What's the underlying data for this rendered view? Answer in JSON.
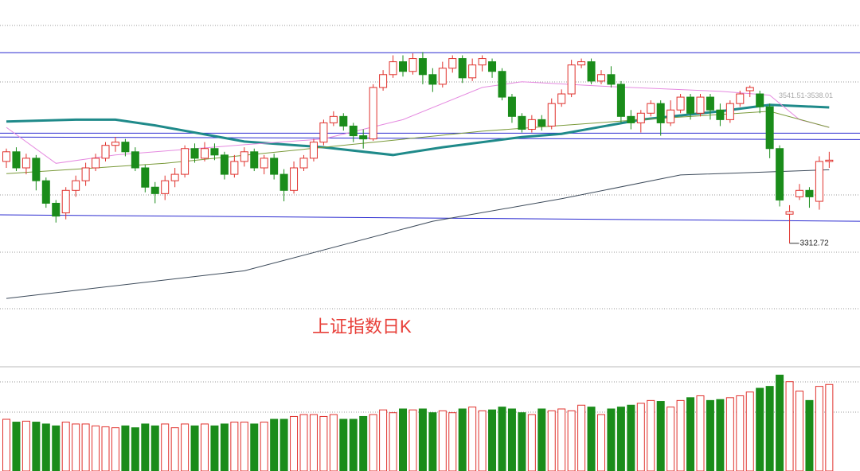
{
  "chart_data": {
    "type": "candlestick",
    "title": "上证指数日K",
    "ylim": [
      3122,
      3691
    ],
    "open": [
      3440,
      3455,
      3430,
      3445,
      3410,
      3375,
      3360,
      3395,
      3410,
      3430,
      3445,
      3465,
      3470,
      3455,
      3430,
      3400,
      3390,
      3410,
      3420,
      3460,
      3445,
      3460,
      3450,
      3420,
      3440,
      3455,
      3430,
      3445,
      3420,
      3395,
      3430,
      3445,
      3470,
      3500,
      3510,
      3495,
      3480,
      3475,
      3555,
      3575,
      3595,
      3580,
      3600,
      3575,
      3560,
      3585,
      3600,
      3570,
      3590,
      3595,
      3580,
      3540,
      3510,
      3490,
      3505,
      3495,
      3530,
      3545,
      3590,
      3595,
      3565,
      3575,
      3560,
      3510,
      3500,
      3515,
      3530,
      3500,
      3520,
      3540,
      3515,
      3540,
      3520,
      3505,
      3530,
      3550,
      3545,
      3525,
      3460,
      3358,
      3385,
      3395,
      3378,
      3440
    ],
    "high": [
      3460,
      3462,
      3452,
      3450,
      3415,
      3380,
      3400,
      3418,
      3438,
      3452,
      3470,
      3478,
      3475,
      3462,
      3435,
      3408,
      3418,
      3430,
      3465,
      3468,
      3470,
      3468,
      3455,
      3450,
      3462,
      3460,
      3450,
      3452,
      3428,
      3440,
      3450,
      3475,
      3505,
      3518,
      3515,
      3500,
      3490,
      3560,
      3582,
      3605,
      3605,
      3608,
      3610,
      3585,
      3595,
      3605,
      3605,
      3600,
      3605,
      3600,
      3585,
      3545,
      3515,
      3512,
      3512,
      3538,
      3552,
      3598,
      3600,
      3600,
      3582,
      3588,
      3565,
      3520,
      3520,
      3535,
      3535,
      3535,
      3545,
      3545,
      3545,
      3545,
      3530,
      3535,
      3550,
      3558,
      3550,
      3530,
      3465,
      3372,
      3405,
      3400,
      3448,
      3455
    ],
    "low": [
      3430,
      3425,
      3420,
      3395,
      3368,
      3345,
      3350,
      3385,
      3402,
      3425,
      3440,
      3455,
      3448,
      3425,
      3392,
      3375,
      3380,
      3400,
      3415,
      3438,
      3440,
      3442,
      3412,
      3415,
      3432,
      3425,
      3420,
      3412,
      3378,
      3390,
      3425,
      3440,
      3465,
      3495,
      3488,
      3470,
      3460,
      3472,
      3550,
      3570,
      3572,
      3575,
      3560,
      3548,
      3555,
      3578,
      3562,
      3565,
      3580,
      3570,
      3535,
      3500,
      3485,
      3485,
      3488,
      3490,
      3525,
      3540,
      3585,
      3560,
      3560,
      3555,
      3500,
      3490,
      3485,
      3510,
      3480,
      3495,
      3515,
      3505,
      3510,
      3505,
      3495,
      3500,
      3525,
      3540,
      3515,
      3445,
      3370,
      3312.72,
      3380,
      3368,
      3365,
      3430
    ],
    "close": [
      3455,
      3430,
      3445,
      3410,
      3375,
      3355,
      3395,
      3410,
      3430,
      3445,
      3465,
      3470,
      3455,
      3430,
      3400,
      3390,
      3410,
      3420,
      3460,
      3445,
      3460,
      3450,
      3420,
      3440,
      3455,
      3430,
      3445,
      3420,
      3395,
      3430,
      3445,
      3470,
      3500,
      3510,
      3495,
      3480,
      3475,
      3555,
      3575,
      3595,
      3580,
      3600,
      3575,
      3560,
      3585,
      3600,
      3570,
      3590,
      3600,
      3580,
      3540,
      3510,
      3490,
      3505,
      3495,
      3530,
      3545,
      3590,
      3595,
      3565,
      3575,
      3560,
      3510,
      3500,
      3515,
      3530,
      3500,
      3520,
      3540,
      3515,
      3540,
      3520,
      3505,
      3530,
      3545,
      3555,
      3525,
      3460,
      3380,
      3362,
      3395,
      3385,
      3440,
      3442
    ],
    "volume": [
      55,
      52,
      53,
      52,
      50,
      48,
      52,
      50,
      50,
      48,
      47,
      46,
      48,
      46,
      50,
      48,
      50,
      46,
      50,
      48,
      50,
      48,
      50,
      52,
      52,
      50,
      52,
      55,
      55,
      58,
      60,
      60,
      58,
      60,
      55,
      55,
      58,
      60,
      65,
      62,
      66,
      65,
      66,
      62,
      64,
      62,
      66,
      68,
      64,
      65,
      68,
      66,
      62,
      60,
      66,
      64,
      66,
      64,
      70,
      68,
      60,
      66,
      68,
      70,
      72,
      75,
      74,
      68,
      75,
      78,
      80,
      75,
      76,
      78,
      80,
      84,
      88,
      90,
      102,
      95,
      85,
      75,
      90,
      92
    ],
    "volume_ylim": [
      0,
      110
    ],
    "up_color": "#e0312c",
    "down_color": "#1a8c1a",
    "lines": [
      {
        "color": "#1f8a8a",
        "width": 3,
        "x": [
          0,
          7,
          11,
          15,
          24,
          32,
          39,
          44,
          52,
          56,
          64,
          72,
          77,
          83
        ],
        "values": [
          3502,
          3505,
          3505,
          3496,
          3471,
          3462,
          3450,
          3462,
          3478,
          3483,
          3505,
          3518,
          3528,
          3524
        ]
      },
      {
        "color": "#3c4a5a",
        "width": 1,
        "x": [
          0,
          24,
          43,
          56,
          68,
          83
        ],
        "values": [
          3227,
          3270,
          3347,
          3382,
          3419,
          3427
        ]
      },
      {
        "color": "#e58ae0",
        "width": 1,
        "x": [
          0,
          5,
          11,
          24,
          32,
          40,
          48,
          52,
          60,
          72,
          77,
          80,
          83
        ],
        "values": [
          3493,
          3437,
          3450,
          3466,
          3475,
          3505,
          3555,
          3564,
          3557,
          3549,
          3543,
          3505,
          3493
        ]
      },
      {
        "color": "#7a9a3a",
        "width": 1,
        "x": [
          0,
          16,
          32,
          48,
          64,
          77,
          83
        ],
        "values": [
          3421,
          3437,
          3462,
          3487,
          3505,
          3518,
          3493
        ]
      }
    ],
    "trendlines": [
      {
        "color": "#2a2ad0",
        "values": [
          3609,
          3609
        ]
      },
      {
        "color": "#2a2ad0",
        "values": [
          3484,
          3484
        ]
      },
      {
        "color": "#2a2ad0",
        "values": [
          3478,
          3474
        ]
      },
      {
        "color": "#2a2ad0",
        "values": [
          3357,
          3347
        ]
      }
    ],
    "range_label": "3541.51-3538.01",
    "range_label_value": 3541.51
  }
}
